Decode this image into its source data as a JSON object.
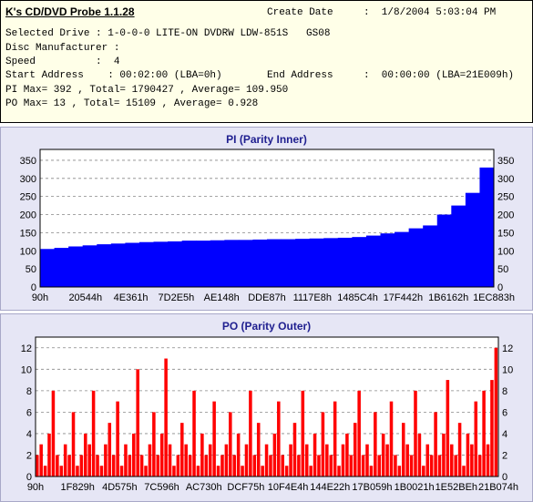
{
  "app": {
    "title": "K's CD/DVD Probe 1.1.28"
  },
  "info": {
    "create_date_label": "Create Date",
    "create_date_value": ":  1/8/2004 5:03:04 PM",
    "selected_drive": "Selected Drive : 1-0-0-0 LITE-ON DVDRW LDW-851S   GS08",
    "disc_manufacturer": "Disc Manufacturer :",
    "speed": "Speed          :  4",
    "start_address": "Start Address    : 00:02:00 (LBA=0h)",
    "end_address_label": "End Address",
    "end_address_value": ":  00:00:00 (LBA=21E009h)",
    "pi_stats": "PI Max= 392 , Total= 1790427 , Average= 109.950",
    "po_stats": "PO Max= 13 , Total= 15109 , Average= 0.928"
  },
  "colors": {
    "pi": "#0000ff",
    "po": "#ff0000",
    "panel": "#e6e6f5",
    "title": "#202090"
  },
  "chart_data": [
    {
      "type": "area",
      "title": "PI (Parity Inner)",
      "xlabel": "",
      "ylabel": "",
      "ylim": [
        0,
        380
      ],
      "yticks": [
        0,
        50,
        100,
        150,
        200,
        250,
        300,
        350
      ],
      "xtick_labels": [
        "90h",
        "20544h",
        "4E361h",
        "7D2E5h",
        "AE148h",
        "DDE87h",
        "1117E8h",
        "1485C4h",
        "17F442h",
        "1B6162h",
        "1EC883h"
      ],
      "grid": true,
      "series": [
        {
          "values": [
            105,
            108,
            112,
            115,
            118,
            120,
            122,
            124,
            125,
            126,
            128,
            128,
            129,
            130,
            130,
            131,
            132,
            132,
            133,
            134,
            135,
            136,
            138,
            142,
            148,
            152,
            162,
            170,
            200,
            225,
            260,
            330
          ]
        }
      ]
    },
    {
      "type": "bar",
      "title": "PO (Parity Outer)",
      "xlabel": "",
      "ylabel": "",
      "ylim": [
        0,
        13
      ],
      "yticks": [
        0,
        2,
        4,
        6,
        8,
        10,
        12
      ],
      "xtick_labels": [
        "90h",
        "1F829h",
        "4D575h",
        "7C596h",
        "AC730h",
        "DCF75h",
        "10F4E4h",
        "144E22h",
        "17B059h",
        "1B0021h",
        "1E52BEh",
        "21B074h"
      ],
      "grid": true,
      "series": [
        {
          "values": [
            2,
            3,
            1,
            4,
            8,
            2,
            1,
            3,
            2,
            6,
            1,
            2,
            4,
            3,
            8,
            2,
            1,
            3,
            5,
            2,
            7,
            1,
            3,
            2,
            4,
            10,
            2,
            1,
            3,
            6,
            2,
            4,
            11,
            3,
            1,
            2,
            5,
            3,
            2,
            8,
            1,
            4,
            2,
            3,
            7,
            1,
            2,
            3,
            6,
            2,
            4,
            1,
            3,
            8,
            2,
            5,
            1,
            3,
            2,
            4,
            7,
            2,
            1,
            3,
            5,
            2,
            8,
            3,
            1,
            4,
            2,
            6,
            3,
            2,
            7,
            1,
            3,
            4,
            2,
            5,
            8,
            2,
            3,
            1,
            6,
            2,
            4,
            3,
            7,
            2,
            1,
            5,
            3,
            2,
            8,
            4,
            1,
            3,
            2,
            6,
            2,
            4,
            9,
            3,
            2,
            5,
            1,
            4,
            3,
            7,
            2,
            8,
            3,
            9,
            12
          ]
        }
      ]
    }
  ]
}
